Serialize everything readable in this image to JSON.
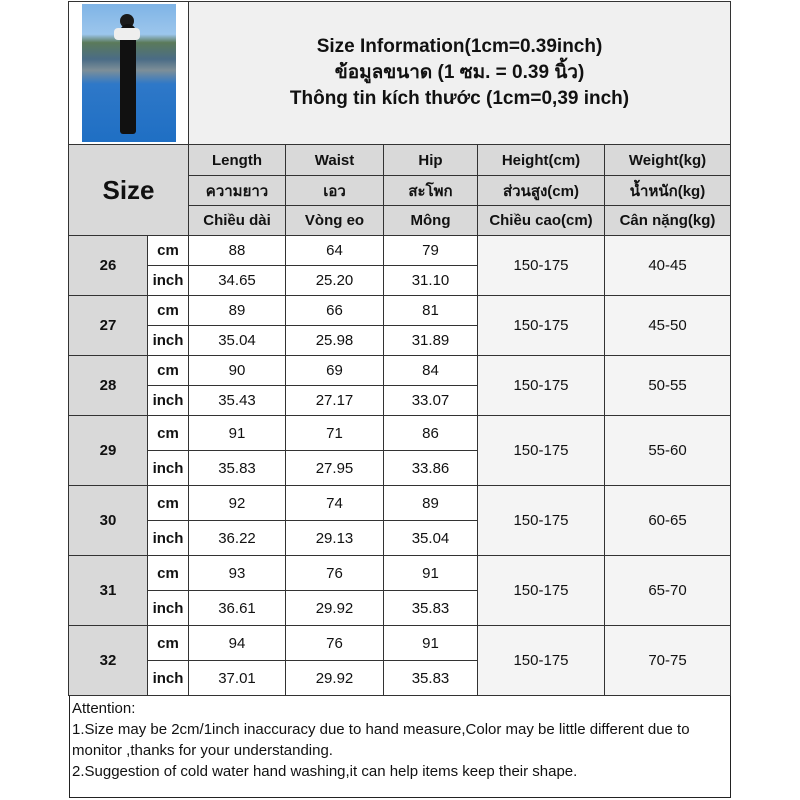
{
  "title": {
    "line1": "Size Information(1cm=0.39inch)",
    "line2": "ข้อมูลขนาด (1 ซม. = 0.39 นิ้ว)",
    "line3": "Thông tin kích thước (1cm=0,39 inch)"
  },
  "size_label": "Size",
  "columns": [
    {
      "en": "Length",
      "th": "ความยาว",
      "vi": "Chiều dài"
    },
    {
      "en": "Waist",
      "th": "เอว",
      "vi": "Vòng eo"
    },
    {
      "en": "Hip",
      "th": "สะโพก",
      "vi": "Mông"
    },
    {
      "en": "Height(cm)",
      "th": "ส่วนสูง(cm)",
      "vi": "Chiều cao(cm)"
    },
    {
      "en": "Weight(kg)",
      "th": "น้ำหนัก(kg)",
      "vi": "Cân nặng(kg)"
    }
  ],
  "units": {
    "cm": "cm",
    "inch": "inch"
  },
  "rows": [
    {
      "size": "26",
      "cm": [
        "88",
        "64",
        "79"
      ],
      "inch": [
        "34.65",
        "25.20",
        "31.10"
      ],
      "height": "150-175",
      "weight": "40-45"
    },
    {
      "size": "27",
      "cm": [
        "89",
        "66",
        "81"
      ],
      "inch": [
        "35.04",
        "25.98",
        "31.89"
      ],
      "height": "150-175",
      "weight": "45-50"
    },
    {
      "size": "28",
      "cm": [
        "90",
        "69",
        "84"
      ],
      "inch": [
        "35.43",
        "27.17",
        "33.07"
      ],
      "height": "150-175",
      "weight": "50-55"
    },
    {
      "size": "29",
      "cm": [
        "91",
        "71",
        "86"
      ],
      "inch": [
        "35.83",
        "27.95",
        "33.86"
      ],
      "height": "150-175",
      "weight": "55-60"
    },
    {
      "size": "30",
      "cm": [
        "92",
        "74",
        "89"
      ],
      "inch": [
        "36.22",
        "29.13",
        "35.04"
      ],
      "height": "150-175",
      "weight": "60-65"
    },
    {
      "size": "31",
      "cm": [
        "93",
        "76",
        "91"
      ],
      "inch": [
        "36.61",
        "29.92",
        "35.83"
      ],
      "height": "150-175",
      "weight": "65-70"
    },
    {
      "size": "32",
      "cm": [
        "94",
        "76",
        "91"
      ],
      "inch": [
        "37.01",
        "29.92",
        "35.83"
      ],
      "height": "150-175",
      "weight": "70-75"
    }
  ],
  "notes": {
    "heading": "Attention:",
    "items": [
      "1.Size may be 2cm/1inch inaccuracy due to hand measure,Color may be little different due to monitor ,thanks for your understanding.",
      "2.Suggestion of cold water hand washing,it can help items keep their shape."
    ]
  }
}
